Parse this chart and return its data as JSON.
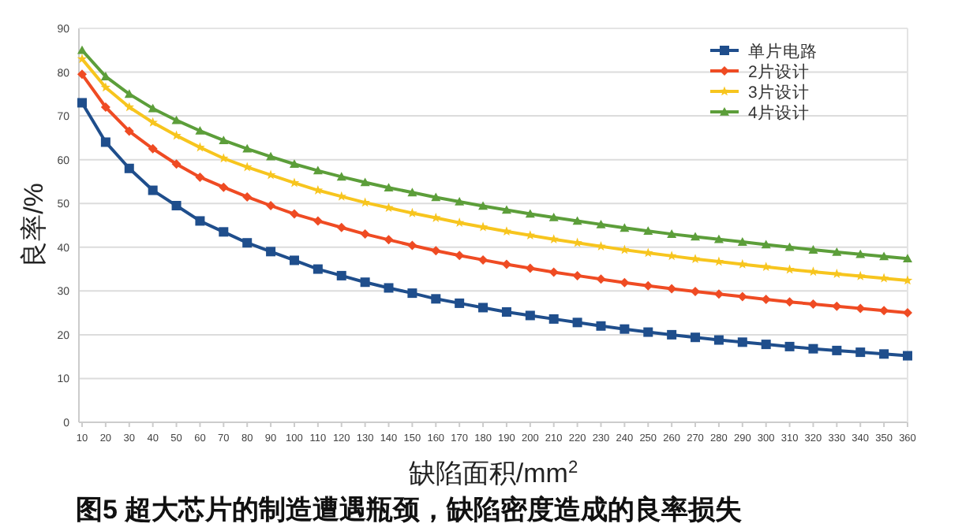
{
  "chart_data": {
    "type": "line",
    "xlabel": "缺陷面积/mm$^{2}$",
    "ylabel": "良率/%",
    "annotations": [
      "图5 超大芯片的制造遭遇瓶颈，缺陷密度造成的良率损失"
    ],
    "categories": [
      "10",
      "20",
      "30",
      "40",
      "50",
      "60",
      "70",
      "80",
      "90",
      "100",
      "110",
      "120",
      "130",
      "140",
      "150",
      "160",
      "170",
      "180",
      "190",
      "200",
      "210",
      "220",
      "230",
      "240",
      "250",
      "260",
      "270",
      "280",
      "290",
      "300",
      "310",
      "320",
      "330",
      "340",
      "350",
      "360"
    ],
    "ylim": [
      0,
      90
    ],
    "yticks": [
      0,
      10,
      20,
      30,
      40,
      50,
      60,
      70,
      80,
      90
    ],
    "grid": "y",
    "legend": "top right",
    "series": [
      {
        "name": "单片电路",
        "color": "#1f4e8c",
        "marker": "square",
        "values": [
          73,
          64,
          58,
          53,
          49.5,
          46,
          43.5,
          41,
          39,
          37,
          35,
          33.5,
          32,
          30.7,
          29.5,
          28.2,
          27.2,
          26.2,
          25.2,
          24.4,
          23.6,
          22.8,
          22,
          21.3,
          20.6,
          20,
          19.4,
          18.8,
          18.3,
          17.8,
          17.3,
          16.8,
          16.4,
          16,
          15.6,
          15.2
        ]
      },
      {
        "name": "2片设计",
        "color": "#ef4b23",
        "marker": "diamond",
        "values": [
          79.5,
          72,
          66.5,
          62.5,
          59,
          56,
          53.7,
          51.5,
          49.5,
          47.6,
          46,
          44.5,
          43,
          41.7,
          40.4,
          39.2,
          38.1,
          37.1,
          36.1,
          35.2,
          34.3,
          33.5,
          32.7,
          31.9,
          31.2,
          30.5,
          29.9,
          29.3,
          28.7,
          28.1,
          27.5,
          27,
          26.5,
          26,
          25.5,
          25
        ]
      },
      {
        "name": "3片设计",
        "color": "#f7c51e",
        "marker": "star",
        "values": [
          83,
          76.5,
          72,
          68.5,
          65.5,
          62.8,
          60.3,
          58.3,
          56.5,
          54.7,
          53,
          51.6,
          50.2,
          49,
          47.8,
          46.7,
          45.6,
          44.6,
          43.6,
          42.7,
          41.8,
          41,
          40.2,
          39.4,
          38.7,
          38,
          37.3,
          36.7,
          36.1,
          35.5,
          34.9,
          34.4,
          33.9,
          33.4,
          32.9,
          32.4
        ]
      },
      {
        "name": "4片设计",
        "color": "#5c9e3a",
        "marker": "triangle",
        "values": [
          85,
          79,
          75,
          71.7,
          69,
          66.6,
          64.4,
          62.5,
          60.7,
          59,
          57.5,
          56.1,
          54.8,
          53.6,
          52.5,
          51.4,
          50.4,
          49.4,
          48.5,
          47.6,
          46.8,
          46,
          45.2,
          44.4,
          43.7,
          43,
          42.4,
          41.8,
          41.2,
          40.6,
          40,
          39.4,
          38.9,
          38.4,
          37.9,
          37.4
        ]
      }
    ]
  }
}
